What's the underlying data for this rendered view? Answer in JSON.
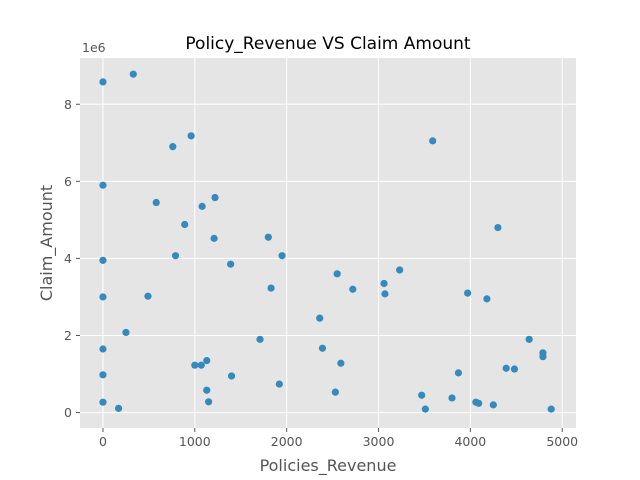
{
  "chart_data": {
    "type": "scatter",
    "title": "Policy_Revenue VS Claim Amount",
    "xlabel": "Policies_Revenue",
    "ylabel": "Claim_Amount",
    "y_offset_label": "1e6",
    "xlim": [
      -250,
      5150
    ],
    "ylim": [
      -400000,
      9200000
    ],
    "x_ticks": [
      0,
      1000,
      2000,
      3000,
      4000,
      5000
    ],
    "x_tick_labels": [
      "0",
      "1000",
      "2000",
      "3000",
      "4000",
      "5000"
    ],
    "y_ticks": [
      0,
      2000000,
      4000000,
      6000000,
      8000000
    ],
    "y_tick_labels": [
      "0",
      "2",
      "4",
      "6",
      "8"
    ],
    "grid": true,
    "style": "ggplot",
    "colors": {
      "background": "#E5E5E5",
      "grid": "#FFFFFF",
      "marker": "#348ABD"
    },
    "points": [
      {
        "x": 0,
        "y": 8580000
      },
      {
        "x": 330,
        "y": 8780000
      },
      {
        "x": 960,
        "y": 7180000
      },
      {
        "x": 760,
        "y": 6900000
      },
      {
        "x": 0,
        "y": 5900000
      },
      {
        "x": 580,
        "y": 5450000
      },
      {
        "x": 1220,
        "y": 5580000
      },
      {
        "x": 1080,
        "y": 5350000
      },
      {
        "x": 890,
        "y": 4880000
      },
      {
        "x": 1210,
        "y": 4520000
      },
      {
        "x": 1800,
        "y": 4550000
      },
      {
        "x": 790,
        "y": 4070000
      },
      {
        "x": 1950,
        "y": 4070000
      },
      {
        "x": 0,
        "y": 3950000
      },
      {
        "x": 1390,
        "y": 3850000
      },
      {
        "x": 2550,
        "y": 3600000
      },
      {
        "x": 3230,
        "y": 3700000
      },
      {
        "x": 1830,
        "y": 3230000
      },
      {
        "x": 2720,
        "y": 3200000
      },
      {
        "x": 3060,
        "y": 3350000
      },
      {
        "x": 3070,
        "y": 3080000
      },
      {
        "x": 490,
        "y": 3020000
      },
      {
        "x": 0,
        "y": 3000000
      },
      {
        "x": 3970,
        "y": 3100000
      },
      {
        "x": 4180,
        "y": 2950000
      },
      {
        "x": 4300,
        "y": 4800000
      },
      {
        "x": 3590,
        "y": 7050000
      },
      {
        "x": 2360,
        "y": 2450000
      },
      {
        "x": 250,
        "y": 2080000
      },
      {
        "x": 1710,
        "y": 1900000
      },
      {
        "x": 4640,
        "y": 1900000
      },
      {
        "x": 0,
        "y": 1650000
      },
      {
        "x": 2390,
        "y": 1670000
      },
      {
        "x": 4790,
        "y": 1550000
      },
      {
        "x": 4790,
        "y": 1450000
      },
      {
        "x": 1130,
        "y": 1350000
      },
      {
        "x": 1000,
        "y": 1230000
      },
      {
        "x": 1070,
        "y": 1230000
      },
      {
        "x": 2590,
        "y": 1280000
      },
      {
        "x": 4390,
        "y": 1150000
      },
      {
        "x": 4480,
        "y": 1130000
      },
      {
        "x": 0,
        "y": 980000
      },
      {
        "x": 1400,
        "y": 950000
      },
      {
        "x": 3870,
        "y": 1030000
      },
      {
        "x": 1920,
        "y": 740000
      },
      {
        "x": 1130,
        "y": 580000
      },
      {
        "x": 2530,
        "y": 530000
      },
      {
        "x": 3470,
        "y": 450000
      },
      {
        "x": 3800,
        "y": 380000
      },
      {
        "x": 0,
        "y": 270000
      },
      {
        "x": 1150,
        "y": 280000
      },
      {
        "x": 4060,
        "y": 270000
      },
      {
        "x": 4090,
        "y": 240000
      },
      {
        "x": 4250,
        "y": 200000
      },
      {
        "x": 170,
        "y": 110000
      },
      {
        "x": 3510,
        "y": 90000
      },
      {
        "x": 4880,
        "y": 90000
      }
    ]
  }
}
